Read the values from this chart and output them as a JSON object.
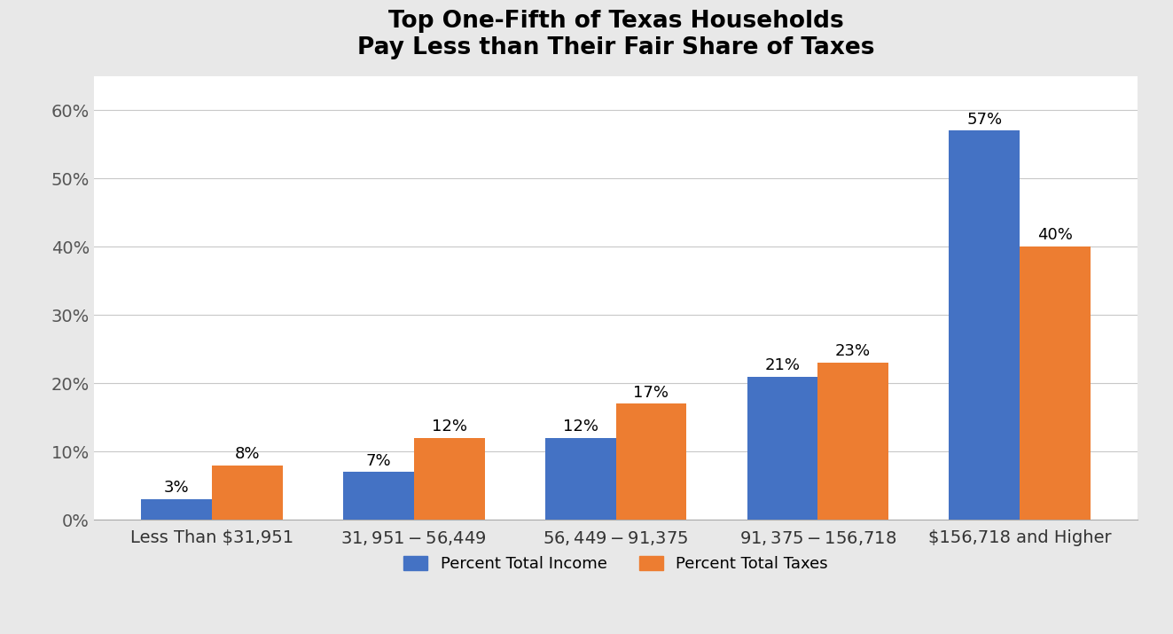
{
  "title": "Top One-Fifth of Texas Households\nPay Less than Their Fair Share of Taxes",
  "categories": [
    "Less Than $31,951",
    "$31,951 - $56,449",
    "$56,449 - $91,375",
    "$91,375 - $156,718",
    "$156,718 and Higher"
  ],
  "income_values": [
    3,
    7,
    12,
    21,
    57
  ],
  "tax_values": [
    8,
    12,
    17,
    23,
    40
  ],
  "income_color": "#4472C4",
  "tax_color": "#ED7D31",
  "legend_labels": [
    "Percent Total Income",
    "Percent Total Taxes"
  ],
  "ylim": [
    0,
    65
  ],
  "yticks": [
    0,
    10,
    20,
    30,
    40,
    50,
    60
  ],
  "ytick_labels": [
    "0%",
    "10%",
    "20%",
    "30%",
    "40%",
    "50%",
    "60%"
  ],
  "bar_width": 0.35,
  "title_fontsize": 19,
  "tick_fontsize": 14,
  "annotation_fontsize": 13,
  "legend_fontsize": 13,
  "figure_bg_color": "#E8E8E8",
  "plot_bg_color": "#FFFFFF",
  "grid_color": "#C8C8C8"
}
